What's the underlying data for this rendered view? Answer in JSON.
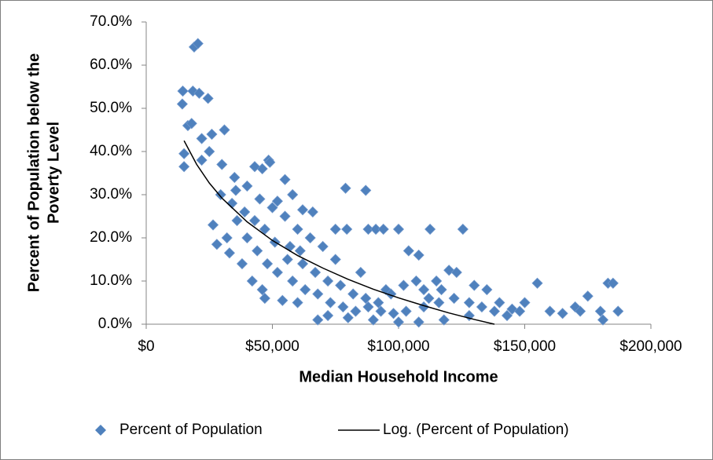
{
  "chart_data": {
    "type": "scatter",
    "x_label": "Median Household Income",
    "y_label": [
      "Percent of Population below the",
      "Poverty Level"
    ],
    "xlim": [
      0,
      200000
    ],
    "ylim": [
      0,
      70
    ],
    "xticks": [
      {
        "value": 0,
        "label": "$0"
      },
      {
        "value": 50000,
        "label": "$50,000"
      },
      {
        "value": 100000,
        "label": "$100,000"
      },
      {
        "value": 150000,
        "label": "$150,000"
      },
      {
        "value": 200000,
        "label": "$200,000"
      }
    ],
    "yticks": [
      {
        "value": 0,
        "label": "0.0%"
      },
      {
        "value": 10,
        "label": "10.0%"
      },
      {
        "value": 20,
        "label": "20.0%"
      },
      {
        "value": 30,
        "label": "30.0%"
      },
      {
        "value": 40,
        "label": "40.0%"
      },
      {
        "value": 50,
        "label": "50.0%"
      },
      {
        "value": 60,
        "label": "60.0%"
      },
      {
        "value": 70,
        "label": "70.0%"
      }
    ],
    "grid": false,
    "legend": "bottom",
    "series": [
      {
        "name": "Percent of Population",
        "color": "#4f81bd",
        "style": "markers",
        "x": [
          19000,
          20500,
          14500,
          14300,
          18500,
          21000,
          24500,
          16500,
          18000,
          15000,
          15000,
          31000,
          26000,
          22000,
          29500,
          48500,
          49000,
          79000,
          87000,
          46000,
          43000,
          35500,
          55000,
          58000,
          52000,
          62000,
          66000,
          75000,
          79500,
          88000,
          91000,
          94000,
          100000,
          112500,
          125500,
          104000,
          108000,
          155000,
          183000,
          185000,
          187000,
          181000,
          180000,
          175000,
          170000,
          160000,
          150000,
          145000,
          140000,
          135000,
          130000,
          120000,
          123000,
          115000,
          110000,
          26500,
          28000,
          33000,
          38000,
          42000,
          46000,
          47000,
          54000,
          60000,
          68000,
          72000,
          80000,
          90000,
          100000,
          108000,
          118000,
          128000,
          95000,
          85000,
          75000,
          70000,
          65000,
          60000,
          55000,
          50000,
          45000,
          40000,
          35000,
          30000,
          25000,
          22000,
          36000,
          40000,
          44000,
          48000,
          52000,
          58000,
          63000,
          68000,
          73000,
          78000,
          83000,
          88000,
          93000,
          98000,
          103000,
          110000,
          116000,
          122000,
          128000,
          133000,
          138000,
          143000,
          148000,
          165000,
          172000,
          56000,
          62000,
          67000,
          72000,
          77000,
          82000,
          87000,
          92000,
          97000,
          102000,
          107000,
          112000,
          117000,
          39000,
          43000,
          47000,
          51000,
          57000,
          61000,
          34000,
          32000
        ],
        "values": [
          64.2,
          65,
          54,
          51,
          54,
          53.5,
          52.3,
          46,
          46.5,
          39.5,
          36.5,
          45,
          44,
          43,
          30,
          38,
          37.5,
          31.5,
          31,
          36,
          36.5,
          31,
          33.5,
          30,
          28.5,
          26.5,
          26,
          22,
          22,
          22,
          22,
          22,
          22,
          22,
          22,
          17,
          16,
          9.5,
          9.5,
          9.5,
          3,
          1,
          3,
          6.5,
          4,
          3,
          5,
          3.5,
          5,
          8,
          9,
          12.5,
          12,
          10,
          8,
          23,
          18.5,
          16.5,
          14,
          10,
          8,
          6,
          5.5,
          5,
          1,
          2,
          1.5,
          1,
          0.5,
          0.5,
          1,
          2,
          8,
          12,
          15,
          18,
          20,
          22,
          25,
          27,
          29,
          32,
          34,
          37,
          40,
          38,
          24,
          20,
          17,
          14,
          12,
          10,
          8,
          7,
          5,
          4,
          3,
          4,
          3,
          2.5,
          3,
          4,
          5,
          6,
          5,
          4,
          3,
          2,
          3,
          2.5,
          3,
          15,
          14,
          12,
          10,
          9,
          7,
          6,
          5,
          7,
          9,
          10,
          6,
          8,
          26,
          24,
          22,
          19,
          18,
          17,
          28,
          20
        ]
      },
      {
        "name": "Log. (Percent of Population)",
        "color": "#000000",
        "style": "line",
        "x": [
          15000,
          20000,
          25000,
          30000,
          40000,
          50000,
          60000,
          70000,
          80000,
          90000,
          100000,
          110000,
          120000,
          130000,
          138000
        ],
        "values": [
          42.5,
          37.0,
          32.7,
          29.2,
          23.7,
          19.4,
          15.9,
          13.0,
          10.4,
          8.1,
          6.1,
          4.3,
          2.6,
          1.1,
          0
        ]
      }
    ]
  }
}
